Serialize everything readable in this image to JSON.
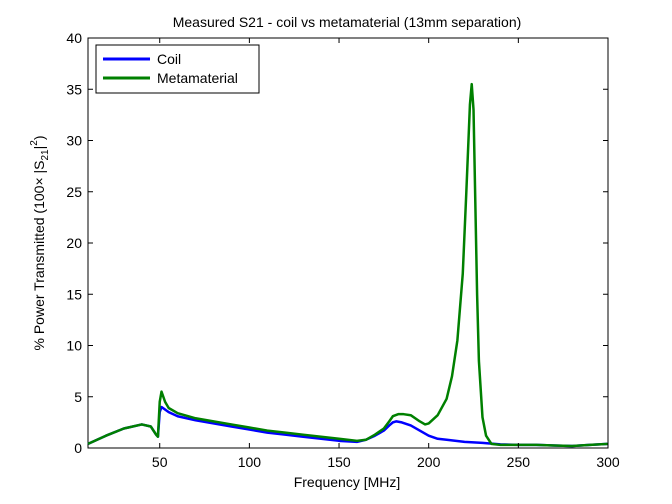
{
  "chart_data": {
    "type": "line",
    "title": "Measured S21 - coil vs metamaterial (13mm separation)",
    "xlabel": "Frequency [MHz]",
    "ylabel_parts": {
      "prefix": "% Power Transmitted (100× |S",
      "sub": "21",
      "mid": "|",
      "sup": "2",
      "suffix": ")"
    },
    "xlim": [
      10,
      300
    ],
    "ylim": [
      0,
      40
    ],
    "xticks": [
      50,
      100,
      150,
      200,
      250,
      300
    ],
    "yticks": [
      0,
      5,
      10,
      15,
      20,
      25,
      30,
      35,
      40
    ],
    "grid": false,
    "legend_position": "top-left",
    "series": [
      {
        "name": "Coil",
        "color": "#0000ff",
        "x": [
          10,
          20,
          30,
          40,
          45,
          48,
          49,
          50,
          51,
          55,
          60,
          70,
          80,
          90,
          100,
          110,
          120,
          130,
          140,
          150,
          160,
          165,
          170,
          175,
          178,
          180,
          182,
          185,
          190,
          195,
          200,
          205,
          210,
          220,
          230,
          240,
          250,
          260,
          270,
          280,
          290,
          300
        ],
        "y": [
          0.4,
          1.2,
          1.9,
          2.3,
          2.1,
          1.3,
          1.1,
          3.5,
          4.0,
          3.5,
          3.1,
          2.7,
          2.4,
          2.1,
          1.8,
          1.5,
          1.3,
          1.1,
          0.9,
          0.7,
          0.6,
          0.8,
          1.2,
          1.7,
          2.2,
          2.5,
          2.6,
          2.5,
          2.2,
          1.7,
          1.2,
          0.9,
          0.8,
          0.6,
          0.5,
          0.35,
          0.3,
          0.3,
          0.25,
          0.2,
          0.3,
          0.4
        ]
      },
      {
        "name": "Metamaterial",
        "color": "#008000",
        "x": [
          10,
          20,
          30,
          40,
          45,
          48,
          49,
          50,
          51,
          53,
          55,
          60,
          70,
          80,
          90,
          100,
          110,
          120,
          130,
          140,
          150,
          160,
          165,
          170,
          175,
          178,
          180,
          183,
          186,
          190,
          195,
          198,
          200,
          205,
          210,
          213,
          216,
          219,
          221,
          223,
          224,
          225,
          226,
          227,
          228,
          230,
          232,
          235,
          240,
          250,
          260,
          270,
          280,
          290,
          300
        ],
        "y": [
          0.4,
          1.2,
          1.9,
          2.3,
          2.1,
          1.3,
          1.1,
          4.5,
          5.5,
          4.5,
          3.9,
          3.4,
          2.9,
          2.6,
          2.3,
          2.0,
          1.7,
          1.5,
          1.3,
          1.1,
          0.9,
          0.7,
          0.8,
          1.3,
          1.9,
          2.6,
          3.1,
          3.3,
          3.3,
          3.2,
          2.6,
          2.3,
          2.4,
          3.2,
          4.8,
          7.0,
          10.5,
          17.0,
          25.0,
          33.5,
          35.5,
          33.0,
          24.0,
          15.0,
          8.5,
          3.0,
          1.2,
          0.4,
          0.3,
          0.3,
          0.3,
          0.25,
          0.2,
          0.3,
          0.4
        ]
      }
    ]
  }
}
